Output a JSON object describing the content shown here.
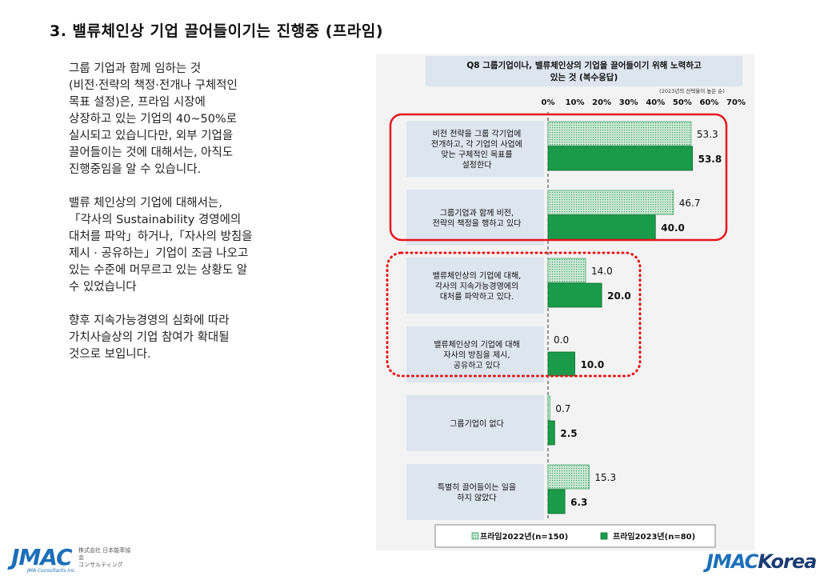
{
  "slide": {
    "title": "3.  밸류체인상 기업 끌어들이기는 진행중 (프라임)",
    "paragraphs": [
      "그룹 기업과 함께 임하는 것\n(비전·전략의 책정·전개나 구체적인\n목표 설정)은, 프라임 시장에\n상장하고 있는 기업의 40~50%로\n실시되고 있습니다만, 외부 기업을\n끌어들이는 것에  대해서는, 아직도\n진행중임을 알 수 있습니다.",
      "밸류 체인상의 기업에 대해서는,\n「각사의 Sustainability 경영에의\n대처를 파악」하거나,「자사의 방침을\n제시 · 공유하는」기업이 조금 나오고\n있는 수준에 머무르고 있는 상황도 알\n수 있었습니다",
      "향후 지속가능경영의 심화에 따라\n가치사슬상의 기업 참여가 확대될\n것으로 보입니다."
    ]
  },
  "chart_data": {
    "type": "bar",
    "orientation": "horizontal",
    "title": "Q8 그룹기업이나, 밸류체인상의 기업을 끌어들이기 위해 노력하고 있는 것 (복수응답)",
    "subtitle": "(2023년의 선택율이 높은 순)",
    "xlim": [
      0,
      70
    ],
    "ticks": [
      "0%",
      "10%",
      "20%",
      "30%",
      "40%",
      "50%",
      "60%",
      "70%"
    ],
    "categories": [
      "비전 전략을  그룹 각기업에\n전개하고, 각 기업의 사업에\n맞는 구체적인 목표를\n설정한다",
      "그룹기업과 함께 비전,\n전략의 책정을 행하고 있다",
      "밸류체인상의 기업에 대해,\n각사의 지속가능경영에의\n대처를 파악하고 있다.",
      "밸류체인상의 기업에 대해\n자사의 방침을 제시,\n공유하고 있다",
      "그룹기업이 없다",
      "특별히 끌어들이는 일을\n하지 않았다"
    ],
    "series": [
      {
        "name": "프라임2022년(n=150)",
        "values": [
          53.3,
          46.7,
          14.0,
          0.0,
          0.7,
          15.3
        ],
        "labels": [
          "53.3",
          "46.7",
          "14.0",
          "0.0",
          "0.7",
          "15.3"
        ]
      },
      {
        "name": "프라임2023년(n=80)",
        "values": [
          53.8,
          40.0,
          20.0,
          10.0,
          2.5,
          6.3
        ],
        "labels": [
          "53.8",
          "40.0",
          "20.0",
          "10.0",
          "2.5",
          "6.3"
        ]
      }
    ],
    "legend": [
      "프라임2022년(n=150)",
      "프라임2023년(n=80)"
    ],
    "legend_position": "bottom",
    "colors": {
      "series2022_fill": "#cfe9d7",
      "series2022_dots": "#3aa562",
      "series2023": "#1a9b4a",
      "label_box": "#dde5ef",
      "solid_outline": "#e8141c",
      "dotted_outline": "#e8141c"
    }
  },
  "logos": {
    "left_mark": "JMAC",
    "left_sub": "JMA Consultants Inc.",
    "left_jp": "株式会社 日本能率協会\nコンサルティング",
    "right_mark": "JMAC",
    "right_korea": "Korea"
  }
}
